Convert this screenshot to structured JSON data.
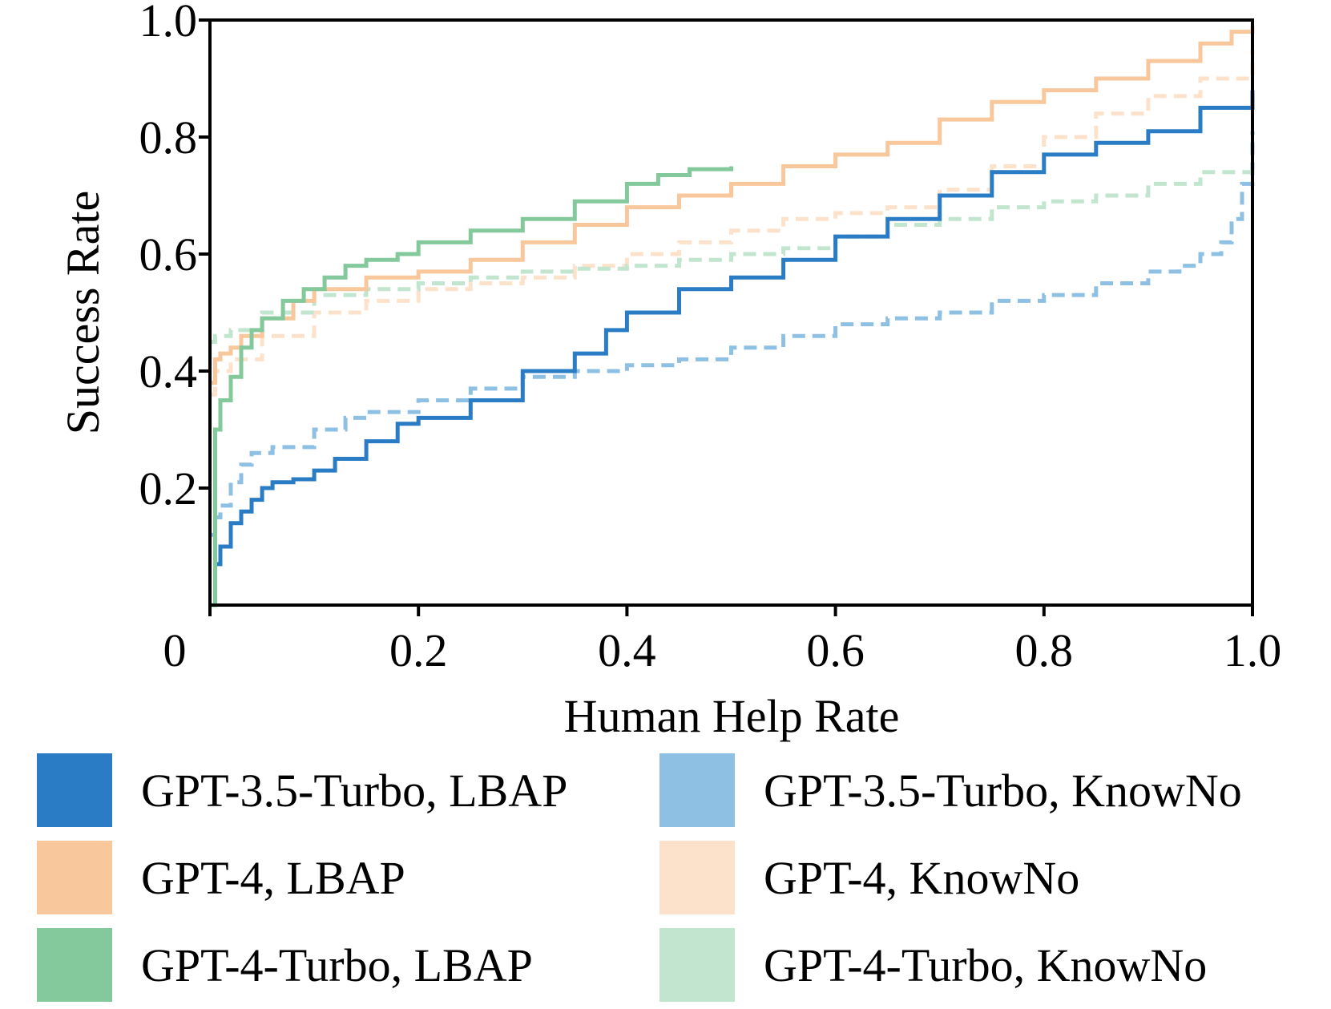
{
  "chart_data": {
    "type": "line",
    "title": "",
    "xlabel": "Human Help Rate",
    "ylabel": "Success Rate",
    "xlim": [
      0,
      1
    ],
    "ylim": [
      0,
      1
    ],
    "xticks": [
      "0",
      "0.2",
      "0.4",
      "0.6",
      "0.8",
      "1.0"
    ],
    "yticks": [
      "0.2",
      "0.4",
      "0.6",
      "0.8",
      "1.0"
    ],
    "grid": false,
    "legend_position": "bottom",
    "series": [
      {
        "name": "GPT-3.5-Turbo, LBAP",
        "color": "#2a7dc4",
        "style": "solid",
        "x": [
          0,
          0.005,
          0.01,
          0.02,
          0.03,
          0.04,
          0.05,
          0.06,
          0.08,
          0.1,
          0.12,
          0.15,
          0.18,
          0.2,
          0.25,
          0.3,
          0.35,
          0.38,
          0.4,
          0.45,
          0.5,
          0.55,
          0.6,
          0.65,
          0.7,
          0.75,
          0.8,
          0.85,
          0.9,
          0.95,
          1.0
        ],
        "y": [
          0.0,
          0.07,
          0.1,
          0.14,
          0.16,
          0.18,
          0.2,
          0.21,
          0.215,
          0.23,
          0.25,
          0.28,
          0.31,
          0.32,
          0.35,
          0.4,
          0.43,
          0.47,
          0.5,
          0.54,
          0.56,
          0.59,
          0.63,
          0.66,
          0.7,
          0.74,
          0.77,
          0.79,
          0.81,
          0.85,
          0.88
        ]
      },
      {
        "name": "GPT-4, LBAP",
        "color": "#f8c79b",
        "style": "solid",
        "x": [
          0,
          0.005,
          0.01,
          0.02,
          0.03,
          0.05,
          0.08,
          0.1,
          0.15,
          0.2,
          0.25,
          0.3,
          0.35,
          0.4,
          0.45,
          0.5,
          0.55,
          0.6,
          0.65,
          0.7,
          0.75,
          0.8,
          0.85,
          0.9,
          0.95,
          0.98,
          1.0
        ],
        "y": [
          0.38,
          0.42,
          0.43,
          0.44,
          0.46,
          0.49,
          0.52,
          0.54,
          0.56,
          0.57,
          0.59,
          0.62,
          0.65,
          0.68,
          0.7,
          0.72,
          0.75,
          0.77,
          0.79,
          0.83,
          0.86,
          0.88,
          0.9,
          0.93,
          0.96,
          0.98,
          0.99
        ]
      },
      {
        "name": "GPT-4-Turbo, LBAP",
        "color": "#83c99b",
        "style": "solid",
        "x": [
          0,
          0.005,
          0.01,
          0.02,
          0.03,
          0.04,
          0.05,
          0.07,
          0.09,
          0.11,
          0.13,
          0.15,
          0.18,
          0.2,
          0.25,
          0.3,
          0.35,
          0.4,
          0.43,
          0.46,
          0.5
        ],
        "y": [
          0.0,
          0.3,
          0.35,
          0.39,
          0.44,
          0.47,
          0.49,
          0.52,
          0.54,
          0.56,
          0.58,
          0.59,
          0.6,
          0.62,
          0.64,
          0.66,
          0.69,
          0.72,
          0.735,
          0.745,
          0.75
        ]
      },
      {
        "name": "GPT-3.5-Turbo, KnowNo",
        "color": "#8ec0e3",
        "style": "dashed",
        "x": [
          0,
          0.005,
          0.01,
          0.02,
          0.03,
          0.04,
          0.06,
          0.1,
          0.13,
          0.15,
          0.2,
          0.25,
          0.3,
          0.35,
          0.4,
          0.45,
          0.5,
          0.55,
          0.6,
          0.65,
          0.7,
          0.75,
          0.8,
          0.85,
          0.9,
          0.93,
          0.95,
          0.97,
          0.98,
          0.99,
          1.0
        ],
        "y": [
          0.12,
          0.15,
          0.17,
          0.21,
          0.24,
          0.26,
          0.27,
          0.3,
          0.32,
          0.33,
          0.35,
          0.37,
          0.39,
          0.4,
          0.41,
          0.42,
          0.44,
          0.46,
          0.48,
          0.49,
          0.5,
          0.52,
          0.53,
          0.55,
          0.57,
          0.58,
          0.6,
          0.62,
          0.66,
          0.72,
          0.81
        ]
      },
      {
        "name": "GPT-4, KnowNo",
        "color": "#fde2cb",
        "style": "dashed",
        "x": [
          0,
          0.005,
          0.02,
          0.05,
          0.1,
          0.15,
          0.2,
          0.25,
          0.3,
          0.35,
          0.4,
          0.45,
          0.5,
          0.55,
          0.6,
          0.65,
          0.7,
          0.75,
          0.8,
          0.85,
          0.9,
          0.95,
          1.0
        ],
        "y": [
          0.36,
          0.4,
          0.42,
          0.46,
          0.5,
          0.52,
          0.54,
          0.55,
          0.56,
          0.58,
          0.6,
          0.62,
          0.64,
          0.66,
          0.67,
          0.68,
          0.71,
          0.75,
          0.8,
          0.84,
          0.87,
          0.9,
          0.95
        ]
      },
      {
        "name": "GPT-4-Turbo, KnowNo",
        "color": "#c2e5cf",
        "style": "dashed",
        "x": [
          0,
          0.005,
          0.02,
          0.05,
          0.1,
          0.15,
          0.2,
          0.25,
          0.3,
          0.35,
          0.4,
          0.45,
          0.5,
          0.55,
          0.6,
          0.65,
          0.7,
          0.75,
          0.8,
          0.85,
          0.9,
          0.95,
          1.0
        ],
        "y": [
          0.45,
          0.46,
          0.47,
          0.5,
          0.53,
          0.54,
          0.55,
          0.56,
          0.57,
          0.575,
          0.58,
          0.59,
          0.6,
          0.61,
          0.63,
          0.65,
          0.66,
          0.68,
          0.69,
          0.7,
          0.72,
          0.74,
          0.75
        ]
      }
    ]
  }
}
